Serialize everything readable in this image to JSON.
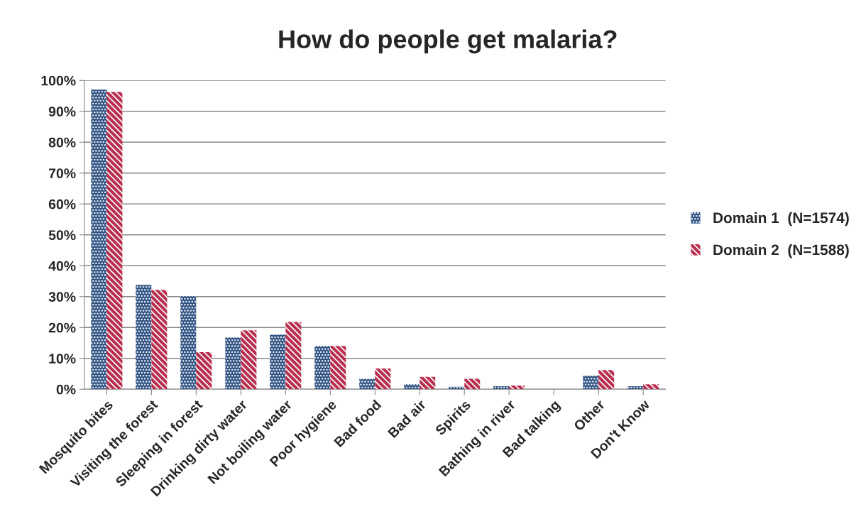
{
  "chart_data": {
    "type": "bar",
    "title": "How do people get malaria?",
    "categories": [
      "Mosquito bites",
      "Visiting the forest",
      "Sleeping in forest",
      "Drinking dirty water",
      "Not boiling water",
      "Poor hygiene",
      "Bad food",
      "Bad air",
      "Spirits",
      "Bathing in river",
      "Bad talking",
      "Other",
      "Don't Know"
    ],
    "series": [
      {
        "name": "Domain 1  (N=1574)",
        "color": "#2f5283",
        "values": [
          97,
          33.8,
          30.1,
          16.8,
          17.7,
          14,
          3.4,
          1.6,
          0.8,
          1.0,
          0,
          4.4,
          1.0
        ]
      },
      {
        "name": "Domain 2  (N=1588)",
        "color": "#b8304f",
        "values": [
          96.3,
          32.2,
          12,
          19.1,
          21.8,
          14,
          6.7,
          4,
          3.4,
          1.2,
          0,
          6.2,
          1.6
        ]
      }
    ],
    "ylim": [
      0,
      100
    ],
    "yticks": [
      {
        "value": 0,
        "label": "0%"
      },
      {
        "value": 10,
        "label": "10%"
      },
      {
        "value": 20,
        "label": "20%"
      },
      {
        "value": 30,
        "label": "30%"
      },
      {
        "value": 40,
        "label": "40%"
      },
      {
        "value": 50,
        "label": "50%"
      },
      {
        "value": 60,
        "label": "60%"
      },
      {
        "value": 70,
        "label": "70%"
      },
      {
        "value": 80,
        "label": "80%"
      },
      {
        "value": 90,
        "label": "90%"
      },
      {
        "value": 100,
        "label": "100%"
      }
    ],
    "grid": "y",
    "legend": "right"
  }
}
